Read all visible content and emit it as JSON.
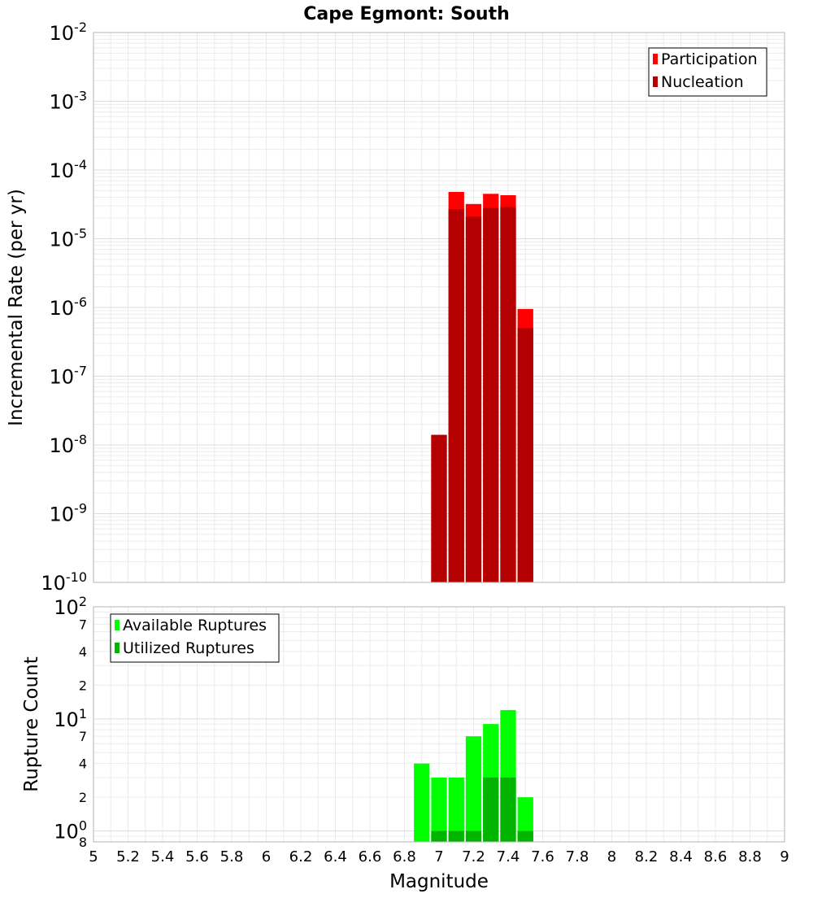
{
  "title": "Cape Egmont: South",
  "xlabel": "Magnitude",
  "x_ticks": [
    "5",
    "5.2",
    "5.4",
    "5.6",
    "5.8",
    "6",
    "6.2",
    "6.4",
    "6.6",
    "6.8",
    "7",
    "7.2",
    "7.4",
    "7.6",
    "7.8",
    "8",
    "8.2",
    "8.4",
    "8.6",
    "8.8",
    "9"
  ],
  "chart_data": [
    {
      "type": "bar",
      "ylabel": "Incremental Rate (per yr)",
      "y_scale": "log",
      "xlim": [
        5,
        9
      ],
      "ylim": [
        1e-10,
        0.01
      ],
      "y_ticks": [
        {
          "base": "10",
          "exp": "-10"
        },
        {
          "base": "10",
          "exp": "-9"
        },
        {
          "base": "10",
          "exp": "-8"
        },
        {
          "base": "10",
          "exp": "-7"
        },
        {
          "base": "10",
          "exp": "-6"
        },
        {
          "base": "10",
          "exp": "-5"
        },
        {
          "base": "10",
          "exp": "-4"
        },
        {
          "base": "10",
          "exp": "-3"
        },
        {
          "base": "10",
          "exp": "-2"
        }
      ],
      "grid": true,
      "legend_position": "top-right",
      "x": [
        7.0,
        7.1,
        7.2,
        7.3,
        7.4,
        7.5
      ],
      "series": [
        {
          "name": "Participation",
          "color": "#ff0000",
          "values": [
            1.4e-08,
            4.8e-05,
            3.2e-05,
            4.5e-05,
            4.3e-05,
            9.5e-07
          ]
        },
        {
          "name": "Nucleation",
          "color": "#b40000",
          "values": [
            1.4e-08,
            2.7e-05,
            2.1e-05,
            2.8e-05,
            2.9e-05,
            5e-07
          ]
        }
      ]
    },
    {
      "type": "bar",
      "ylabel": "Rupture Count",
      "y_scale": "log",
      "xlim": [
        5,
        9
      ],
      "ylim": [
        0.8,
        100
      ],
      "y_ticks": [
        {
          "value": 0.8,
          "label": "8",
          "base": "",
          "exp": ""
        },
        {
          "value": 1,
          "label": "",
          "base": "10",
          "exp": "0"
        },
        {
          "value": 2,
          "label": "2",
          "base": "",
          "exp": ""
        },
        {
          "value": 4,
          "label": "4",
          "base": "",
          "exp": ""
        },
        {
          "value": 7,
          "label": "7",
          "base": "",
          "exp": ""
        },
        {
          "value": 10,
          "label": "",
          "base": "10",
          "exp": "1"
        },
        {
          "value": 20,
          "label": "2",
          "base": "",
          "exp": ""
        },
        {
          "value": 40,
          "label": "4",
          "base": "",
          "exp": ""
        },
        {
          "value": 70,
          "label": "7",
          "base": "",
          "exp": ""
        },
        {
          "value": 100,
          "label": "",
          "base": "10",
          "exp": "2"
        }
      ],
      "grid": true,
      "legend_position": "top-left",
      "x": [
        6.9,
        7.0,
        7.1,
        7.2,
        7.3,
        7.4,
        7.5
      ],
      "series": [
        {
          "name": "Available Ruptures",
          "color": "#00ff00",
          "values": [
            4,
            3,
            3,
            7,
            9,
            12,
            2
          ]
        },
        {
          "name": "Utilized Ruptures",
          "color": "#00b400",
          "values": [
            0,
            1,
            1,
            1,
            3,
            3,
            1
          ]
        }
      ]
    }
  ]
}
